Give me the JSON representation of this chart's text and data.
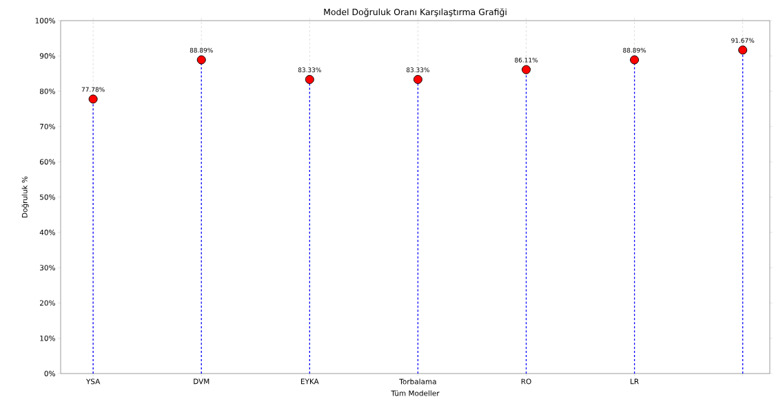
{
  "chart_data": {
    "type": "lollipop",
    "title": "Model Doğruluk Oranı Karşılaştırma Grafiği",
    "xlabel": "Tüm Modeller",
    "ylabel": "Doğruluk %",
    "categories": [
      "YSA",
      "DVM",
      "EYKA",
      "Torbalama",
      "RO",
      "LR",
      null
    ],
    "values": [
      77.78,
      88.89,
      83.33,
      83.33,
      86.11,
      88.89,
      91.67
    ],
    "value_labels": [
      "77.78%",
      "88.89%",
      "83.33%",
      "83.33%",
      "86.11%",
      "88.89%",
      "91.67%"
    ],
    "color": "#ff0000",
    "line_style": "dashed",
    "marker": "circle",
    "ylim": [
      0,
      100
    ],
    "yticks": [
      {
        "value": 0,
        "label": "0%"
      },
      {
        "value": 10,
        "label": "10%"
      },
      {
        "value": 20,
        "label": "20%"
      },
      {
        "value": 30,
        "label": "30%"
      },
      {
        "value": 40,
        "label": "40%"
      },
      {
        "value": 50,
        "label": "50%"
      },
      {
        "value": 60,
        "label": "60%"
      },
      {
        "value": 70,
        "label": "70%"
      },
      {
        "value": 80,
        "label": "80%"
      },
      {
        "value": 90,
        "label": "90%"
      },
      {
        "value": 100,
        "label": "100%"
      }
    ],
    "grid": "x"
  }
}
